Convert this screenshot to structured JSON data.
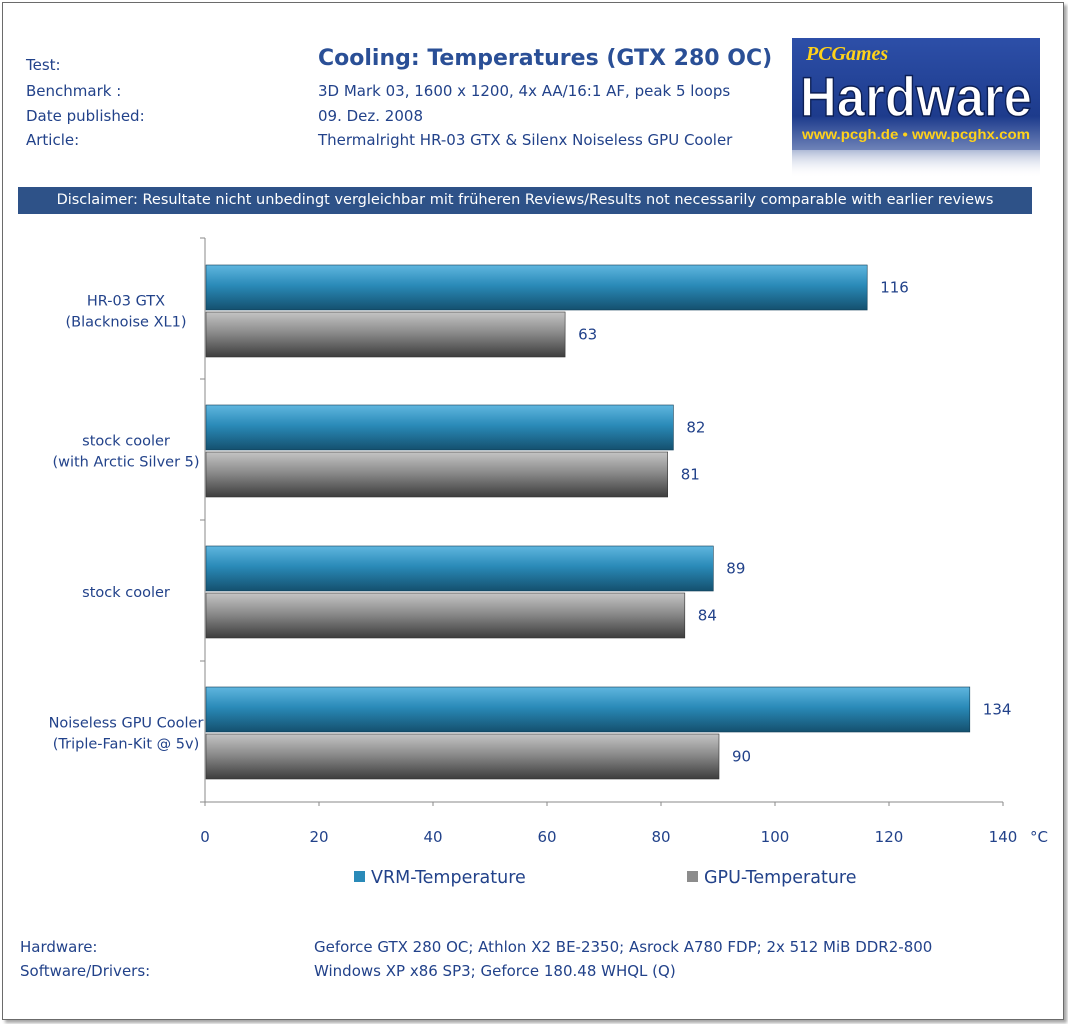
{
  "header": {
    "test_label": "Test:",
    "title": "Cooling: Temperatures (GTX 280 OC)",
    "benchmark_label": "Benchmark :",
    "benchmark_value": "3D Mark 03, 1600 x 1200, 4x AA/16:1 AF, peak 5 loops",
    "date_label": "Date published:",
    "date_value": "09. Dez. 2008",
    "article_label": "Article:",
    "article_value": "Thermalright HR-03 GTX & Silenx Noiseless GPU Cooler"
  },
  "logo": {
    "small_text": "PCGames",
    "main_text": "Hardware",
    "url_text": "www.pcgh.de • www.pcghx.com"
  },
  "disclaimer": "Disclaimer: Resultate nicht unbedingt vergleichbar mit früheren Reviews/Results not necessarily comparable with earlier reviews",
  "chart_data": {
    "type": "bar",
    "orientation": "horizontal",
    "categories": [
      [
        "HR-03 GTX",
        "(Blacknoise XL1)"
      ],
      [
        "stock cooler",
        "(with Arctic Silver 5)"
      ],
      [
        "stock cooler"
      ],
      [
        "Noiseless GPU Cooler",
        "(Triple-Fan-Kit @ 5v)"
      ]
    ],
    "series": [
      {
        "name": "VRM-Temperature",
        "values": [
          116,
          82,
          89,
          134
        ],
        "color": "#2a8ab8"
      },
      {
        "name": "GPU-Temperature",
        "values": [
          63,
          81,
          84,
          90
        ],
        "color": "#8c8c8c"
      }
    ],
    "x_ticks": [
      "0",
      "20",
      "40",
      "60",
      "80",
      "100",
      "120",
      "140"
    ],
    "x_unit": "°C",
    "xlim": [
      0,
      140
    ],
    "grid": false,
    "legend_position": "bottom"
  },
  "footer": {
    "hardware_label": "Hardware:",
    "hardware_value": "Geforce GTX 280 OC; Athlon X2 BE-2350; Asrock A780 FDP; 2x 512 MiB DDR2-800",
    "software_label": "Software/Drivers:",
    "software_value": "Windows XP x86 SP3; Geforce 180.48 WHQL (Q)"
  },
  "colors": {
    "text": "#22428a",
    "disclaimer_bg": "#2e5288",
    "vrm": "#2a8ab8",
    "gpu": "#8c8c8c"
  }
}
